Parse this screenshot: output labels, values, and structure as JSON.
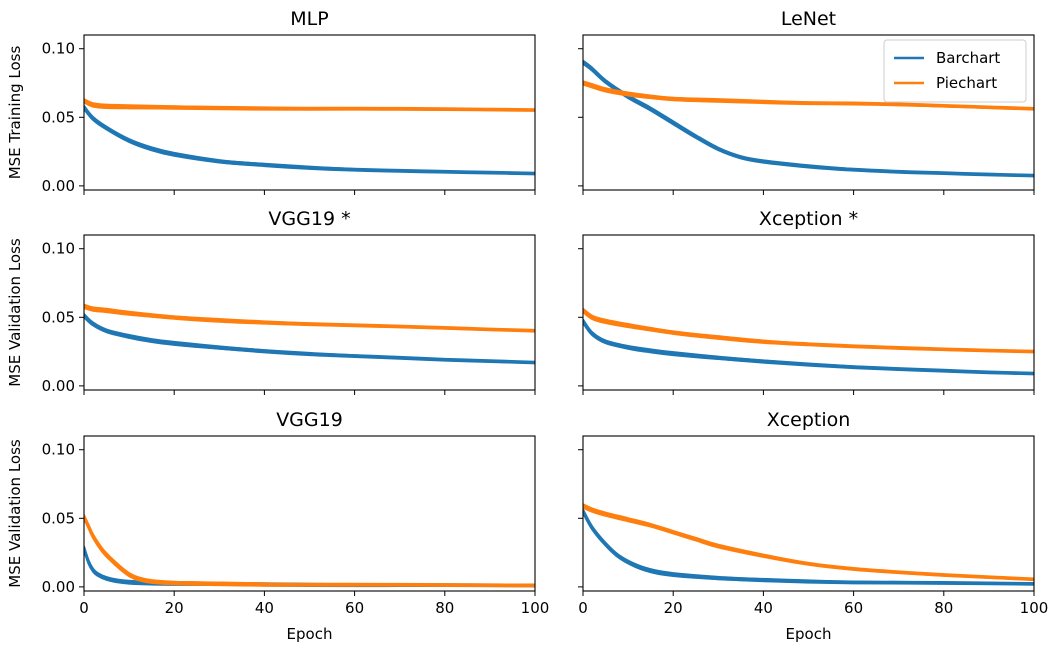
{
  "colors": {
    "barchart": "#1f77b4",
    "piechart": "#ff7f0e"
  },
  "chart_data": [
    {
      "type": "line",
      "title": "MLP",
      "ylabel": "MSE Training Loss",
      "xlabel": "",
      "xlim": [
        0,
        100
      ],
      "ylim": [
        -0.003,
        0.11
      ],
      "yticks": [
        "0.00",
        "0.05",
        "0.10"
      ],
      "grid": false,
      "legend": false,
      "series": [
        {
          "name": "Barchart",
          "runs": 5,
          "x": [
            0,
            2,
            5,
            10,
            15,
            20,
            30,
            40,
            50,
            60,
            70,
            80,
            90,
            100
          ],
          "y": [
            0.057,
            0.049,
            0.042,
            0.033,
            0.027,
            0.023,
            0.018,
            0.0155,
            0.0135,
            0.012,
            0.011,
            0.0102,
            0.0096,
            0.009
          ]
        },
        {
          "name": "Piechart",
          "runs": 5,
          "x": [
            0,
            2,
            5,
            10,
            20,
            40,
            60,
            80,
            100
          ],
          "y": [
            0.062,
            0.059,
            0.058,
            0.0577,
            0.0573,
            0.0567,
            0.0562,
            0.0558,
            0.0553
          ]
        }
      ]
    },
    {
      "type": "line",
      "title": "LeNet",
      "ylabel": "",
      "xlabel": "",
      "xlim": [
        0,
        100
      ],
      "ylim": [
        -0.003,
        0.11
      ],
      "yticks": [
        "",
        "",
        ""
      ],
      "grid": false,
      "legend": true,
      "legend_position": "upper-right",
      "series": [
        {
          "name": "Barchart",
          "runs": 5,
          "x": [
            0,
            2,
            5,
            10,
            15,
            20,
            25,
            30,
            35,
            40,
            50,
            60,
            70,
            80,
            90,
            100
          ],
          "y": [
            0.09,
            0.085,
            0.076,
            0.065,
            0.056,
            0.046,
            0.036,
            0.027,
            0.021,
            0.018,
            0.0145,
            0.012,
            0.0103,
            0.0092,
            0.0082,
            0.0075
          ]
        },
        {
          "name": "Piechart",
          "runs": 5,
          "x": [
            0,
            2,
            5,
            10,
            15,
            20,
            30,
            40,
            50,
            60,
            70,
            80,
            90,
            100
          ],
          "y": [
            0.075,
            0.073,
            0.07,
            0.067,
            0.065,
            0.0635,
            0.0625,
            0.0615,
            0.0605,
            0.06,
            0.0592,
            0.0582,
            0.0572,
            0.0562
          ]
        }
      ]
    },
    {
      "type": "line",
      "title": "VGG19 *",
      "ylabel": "MSE Validation Loss",
      "xlabel": "",
      "xlim": [
        0,
        100
      ],
      "ylim": [
        -0.003,
        0.11
      ],
      "yticks": [
        "0.00",
        "0.05",
        "0.10"
      ],
      "grid": false,
      "legend": false,
      "series": [
        {
          "name": "Barchart",
          "runs": 5,
          "x": [
            0,
            2,
            5,
            10,
            15,
            20,
            30,
            40,
            50,
            60,
            70,
            80,
            90,
            100
          ],
          "y": [
            0.051,
            0.045,
            0.04,
            0.036,
            0.033,
            0.031,
            0.028,
            0.0255,
            0.0235,
            0.022,
            0.0205,
            0.019,
            0.018,
            0.017
          ]
        },
        {
          "name": "Piechart",
          "runs": 5,
          "x": [
            0,
            2,
            5,
            10,
            20,
            30,
            40,
            50,
            60,
            70,
            80,
            90,
            100
          ],
          "y": [
            0.058,
            0.056,
            0.055,
            0.053,
            0.05,
            0.048,
            0.0465,
            0.0452,
            0.0441,
            0.0431,
            0.0421,
            0.0411,
            0.0402
          ]
        }
      ]
    },
    {
      "type": "line",
      "title": "Xception *",
      "ylabel": "",
      "xlabel": "",
      "xlim": [
        0,
        100
      ],
      "ylim": [
        -0.003,
        0.11
      ],
      "yticks": [
        "",
        "",
        ""
      ],
      "grid": false,
      "legend": false,
      "series": [
        {
          "name": "Barchart",
          "runs": 5,
          "x": [
            0,
            2,
            5,
            10,
            15,
            20,
            30,
            40,
            50,
            60,
            70,
            80,
            90,
            100
          ],
          "y": [
            0.047,
            0.038,
            0.032,
            0.028,
            0.0255,
            0.0235,
            0.0205,
            0.018,
            0.0158,
            0.0139,
            0.0123,
            0.011,
            0.0098,
            0.009
          ]
        },
        {
          "name": "Piechart",
          "runs": 5,
          "x": [
            0,
            2,
            5,
            10,
            20,
            30,
            40,
            50,
            60,
            70,
            80,
            90,
            100
          ],
          "y": [
            0.055,
            0.05,
            0.047,
            0.044,
            0.039,
            0.0355,
            0.0325,
            0.0305,
            0.0288,
            0.0275,
            0.0265,
            0.0257,
            0.025
          ]
        }
      ]
    },
    {
      "type": "line",
      "title": "VGG19",
      "ylabel": "MSE Validation Loss",
      "xlabel": "Epoch",
      "xlim": [
        0,
        100
      ],
      "ylim": [
        -0.003,
        0.11
      ],
      "yticks": [
        "0.00",
        "0.05",
        "0.10"
      ],
      "xticks": [
        0,
        20,
        40,
        60,
        80,
        100
      ],
      "grid": false,
      "legend": false,
      "series": [
        {
          "name": "Barchart",
          "runs": 5,
          "x": [
            0,
            1,
            2,
            3,
            5,
            8,
            12,
            20,
            40,
            60,
            80,
            100
          ],
          "y": [
            0.028,
            0.018,
            0.012,
            0.009,
            0.006,
            0.004,
            0.003,
            0.0025,
            0.002,
            0.0015,
            0.0012,
            0.001
          ]
        },
        {
          "name": "Piechart",
          "runs": 5,
          "x": [
            0,
            1,
            2,
            4,
            6,
            8,
            10,
            12,
            15,
            20,
            30,
            40,
            60,
            80,
            100
          ],
          "y": [
            0.051,
            0.044,
            0.037,
            0.027,
            0.02,
            0.014,
            0.009,
            0.006,
            0.004,
            0.003,
            0.0025,
            0.002,
            0.0015,
            0.0012,
            0.001
          ]
        }
      ]
    },
    {
      "type": "line",
      "title": "Xception",
      "ylabel": "",
      "xlabel": "Epoch",
      "xlim": [
        0,
        100
      ],
      "ylim": [
        -0.003,
        0.11
      ],
      "yticks": [
        "",
        "",
        ""
      ],
      "xticks": [
        0,
        20,
        40,
        60,
        80,
        100
      ],
      "grid": false,
      "legend": false,
      "series": [
        {
          "name": "Barchart",
          "runs": 5,
          "x": [
            0,
            2,
            5,
            8,
            12,
            16,
            20,
            30,
            40,
            50,
            60,
            80,
            100
          ],
          "y": [
            0.055,
            0.043,
            0.031,
            0.022,
            0.015,
            0.011,
            0.009,
            0.0065,
            0.0052,
            0.0042,
            0.0035,
            0.0028,
            0.0022
          ]
        },
        {
          "name": "Piechart",
          "runs": 5,
          "x": [
            0,
            2,
            5,
            10,
            15,
            20,
            25,
            30,
            40,
            50,
            60,
            70,
            80,
            90,
            100
          ],
          "y": [
            0.059,
            0.056,
            0.053,
            0.049,
            0.045,
            0.04,
            0.035,
            0.03,
            0.023,
            0.017,
            0.013,
            0.0105,
            0.0085,
            0.007,
            0.0055
          ]
        }
      ]
    }
  ]
}
